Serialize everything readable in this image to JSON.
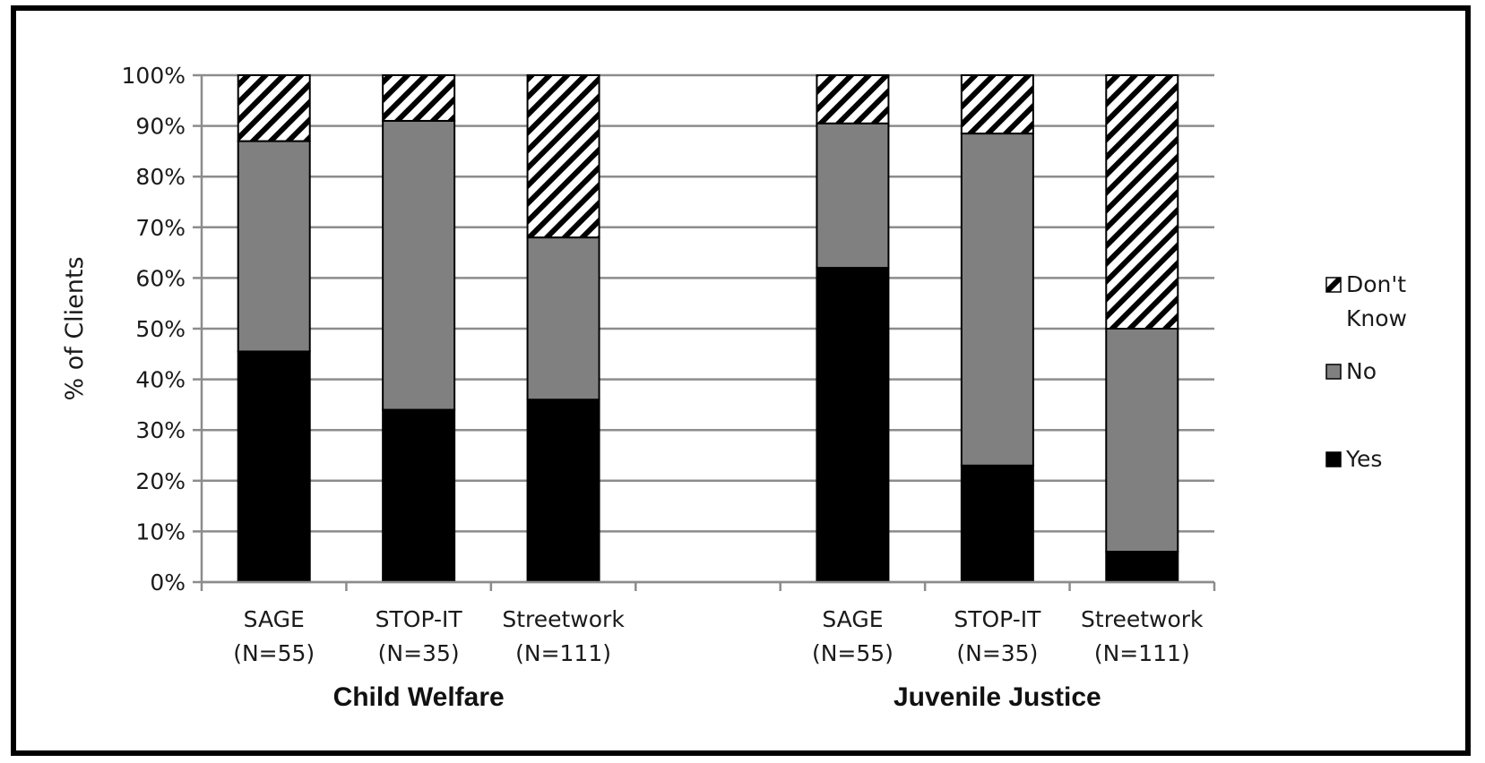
{
  "chart_data": {
    "type": "bar",
    "stacked": true,
    "ylabel": "% of Clients",
    "xlabel": "",
    "ylim": [
      0,
      100
    ],
    "y_ticks": [
      "0%",
      "10%",
      "20%",
      "30%",
      "40%",
      "50%",
      "60%",
      "70%",
      "80%",
      "90%",
      "100%"
    ],
    "grid": true,
    "legend_position": "right",
    "groups": [
      {
        "name": "Child Welfare",
        "categories": [
          {
            "line1": "SAGE",
            "line2": "(N=55)"
          },
          {
            "line1": "STOP-IT",
            "line2": "(N=35)"
          },
          {
            "line1": "Streetwork",
            "line2": "(N=111)"
          }
        ]
      },
      {
        "name": "Juvenile Justice",
        "categories": [
          {
            "line1": "SAGE",
            "line2": "(N=55)"
          },
          {
            "line1": "STOP-IT",
            "line2": "(N=35)"
          },
          {
            "line1": "Streetwork",
            "line2": "(N=111)"
          }
        ]
      }
    ],
    "series": [
      {
        "name": "Yes",
        "color": "#000000",
        "pattern": "solid",
        "values": [
          45.5,
          34,
          36,
          62,
          23,
          6
        ]
      },
      {
        "name": "No",
        "color": "#808080",
        "pattern": "solid",
        "values": [
          41.5,
          57,
          32,
          28.5,
          65.5,
          44
        ]
      },
      {
        "name": "Don't Know",
        "color": "#000000",
        "pattern": "diagonal-hatch",
        "values": [
          13,
          9,
          32,
          9.5,
          11.5,
          50
        ]
      }
    ],
    "legend": [
      {
        "series": "Don't Know",
        "line1": "Don't",
        "line2": "Know"
      },
      {
        "series": "No",
        "line1": "No",
        "line2": ""
      },
      {
        "series": "Yes",
        "line1": "Yes",
        "line2": ""
      }
    ]
  }
}
